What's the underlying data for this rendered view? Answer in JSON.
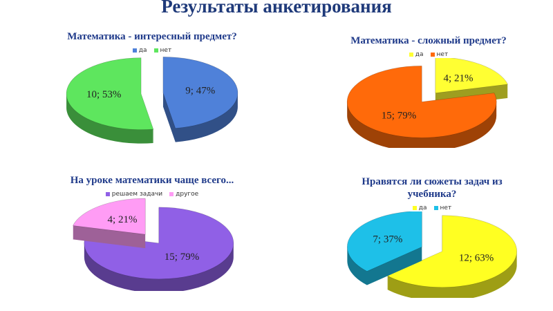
{
  "title": "Результаты анкетирования",
  "chart_data": [
    {
      "type": "pie",
      "title": "Математика - интересный предмет?",
      "categories": [
        "да",
        "нет"
      ],
      "values": [
        9,
        10
      ],
      "value_labels": [
        "9; 47%",
        "10; 53%"
      ],
      "colors": [
        "#4f81d9",
        "#5ee65e"
      ]
    },
    {
      "type": "pie",
      "title": "Математика - сложный предмет?",
      "categories": [
        "да",
        "нет"
      ],
      "values": [
        4,
        15
      ],
      "value_labels": [
        "4; 21%",
        "15; 79%"
      ],
      "colors": [
        "#ffff33",
        "#ff6a0a"
      ]
    },
    {
      "type": "pie",
      "title": "На уроке математики чаще всего...",
      "categories": [
        "решаем задачи",
        "другое"
      ],
      "values": [
        15,
        4
      ],
      "value_labels": [
        "15; 79%",
        "4; 21%"
      ],
      "colors": [
        "#9060e6",
        "#ff9cf5"
      ]
    },
    {
      "type": "pie",
      "title": "Нравятся ли сюжеты задач из учебника?",
      "categories": [
        "да",
        "нет"
      ],
      "values": [
        12,
        7
      ],
      "value_labels": [
        "12; 63%",
        "7; 37%"
      ],
      "colors": [
        "#ffff22",
        "#1ec0e8"
      ]
    }
  ]
}
